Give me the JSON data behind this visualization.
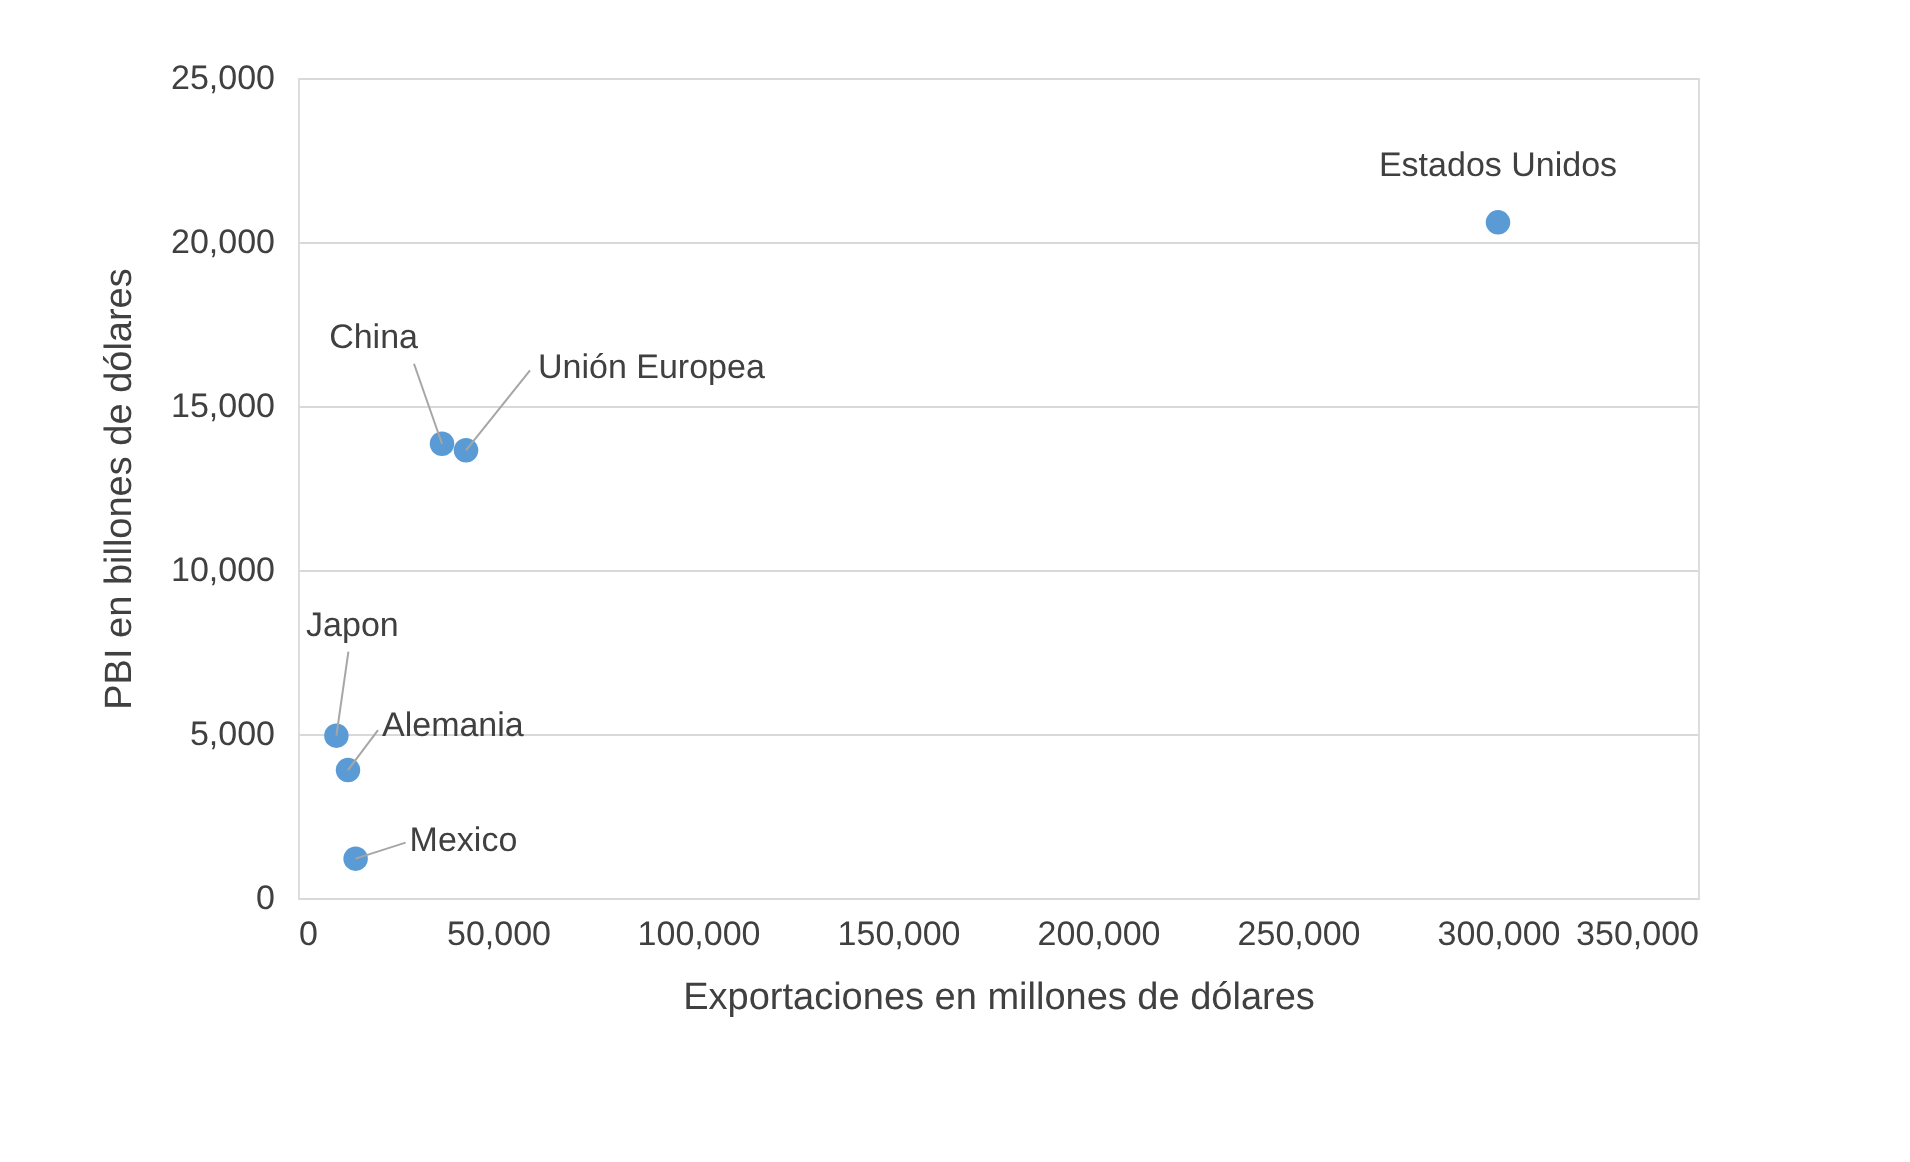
{
  "chart_data": {
    "type": "scatter",
    "xlabel": "Exportaciones en millones de dólares",
    "ylabel": "PBI en billones de dólares",
    "x": [
      300000,
      36000,
      42000,
      9600,
      12500,
      14400
    ],
    "series": [
      {
        "color": "#5b9bd5",
        "values": [
          20600,
          13850,
          13650,
          4950,
          3900,
          1200
        ]
      }
    ],
    "annotations": [
      {
        "text": "Estados Unidos",
        "x": 300000,
        "y": 20600
      },
      {
        "text": "China",
        "x": 36000,
        "y": 13850
      },
      {
        "text": "Unión Europea",
        "x": 42000,
        "y": 13650
      },
      {
        "text": "Japon",
        "x": 9600,
        "y": 4950
      },
      {
        "text": "Alemania",
        "x": 12500,
        "y": 3900
      },
      {
        "text": "Mexico",
        "x": 14400,
        "y": 1200
      }
    ],
    "xlim": [
      0,
      350000
    ],
    "xticks": [
      0,
      {
        "value": 50000,
        "label": "50,000"
      },
      {
        "value": 100000,
        "label": "100,000"
      },
      {
        "value": 150000,
        "label": "150,000"
      },
      {
        "value": 200000,
        "label": "200,000"
      },
      {
        "value": 250000,
        "label": "250,000"
      },
      {
        "value": 300000,
        "label": "300,000"
      },
      {
        "value": 350000,
        "label": "350,000"
      }
    ],
    "ylim": [
      0,
      25000
    ],
    "yticks": [
      0,
      {
        "value": 5000,
        "label": "5,000"
      },
      {
        "value": 10000,
        "label": "10,000"
      },
      {
        "value": 15000,
        "label": "15,000"
      },
      {
        "value": 20000,
        "label": "20,000"
      },
      {
        "value": 25000,
        "label": "25,000"
      }
    ],
    "grid": "y",
    "marker": "circle"
  }
}
